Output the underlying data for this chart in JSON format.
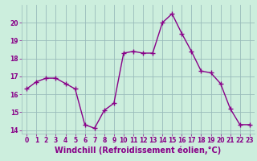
{
  "x": [
    0,
    1,
    2,
    3,
    4,
    5,
    6,
    7,
    8,
    9,
    10,
    11,
    12,
    13,
    14,
    15,
    16,
    17,
    18,
    19,
    20,
    21,
    22,
    23
  ],
  "y": [
    16.3,
    16.7,
    16.9,
    16.9,
    16.6,
    16.3,
    14.3,
    14.1,
    15.1,
    15.5,
    18.3,
    18.4,
    18.3,
    18.3,
    20.0,
    20.5,
    19.4,
    18.4,
    17.3,
    17.2,
    16.6,
    15.2,
    14.3,
    14.3
  ],
  "line_color": "#880088",
  "marker": "+",
  "marker_size": 4,
  "bg_color": "#cceedd",
  "grid_color": "#99bbbb",
  "xlabel": "Windchill (Refroidissement éolien,°C)",
  "xlabel_color": "#880088",
  "ylim": [
    13.8,
    21.0
  ],
  "xlim": [
    -0.5,
    23.5
  ],
  "yticks": [
    14,
    15,
    16,
    17,
    18,
    19,
    20
  ],
  "xticks": [
    0,
    1,
    2,
    3,
    4,
    5,
    6,
    7,
    8,
    9,
    10,
    11,
    12,
    13,
    14,
    15,
    16,
    17,
    18,
    19,
    20,
    21,
    22,
    23
  ],
  "tick_color": "#880088",
  "tick_fontsize": 5.5,
  "xlabel_fontsize": 7.0,
  "line_width": 1.0,
  "marker_edge_width": 1.0
}
